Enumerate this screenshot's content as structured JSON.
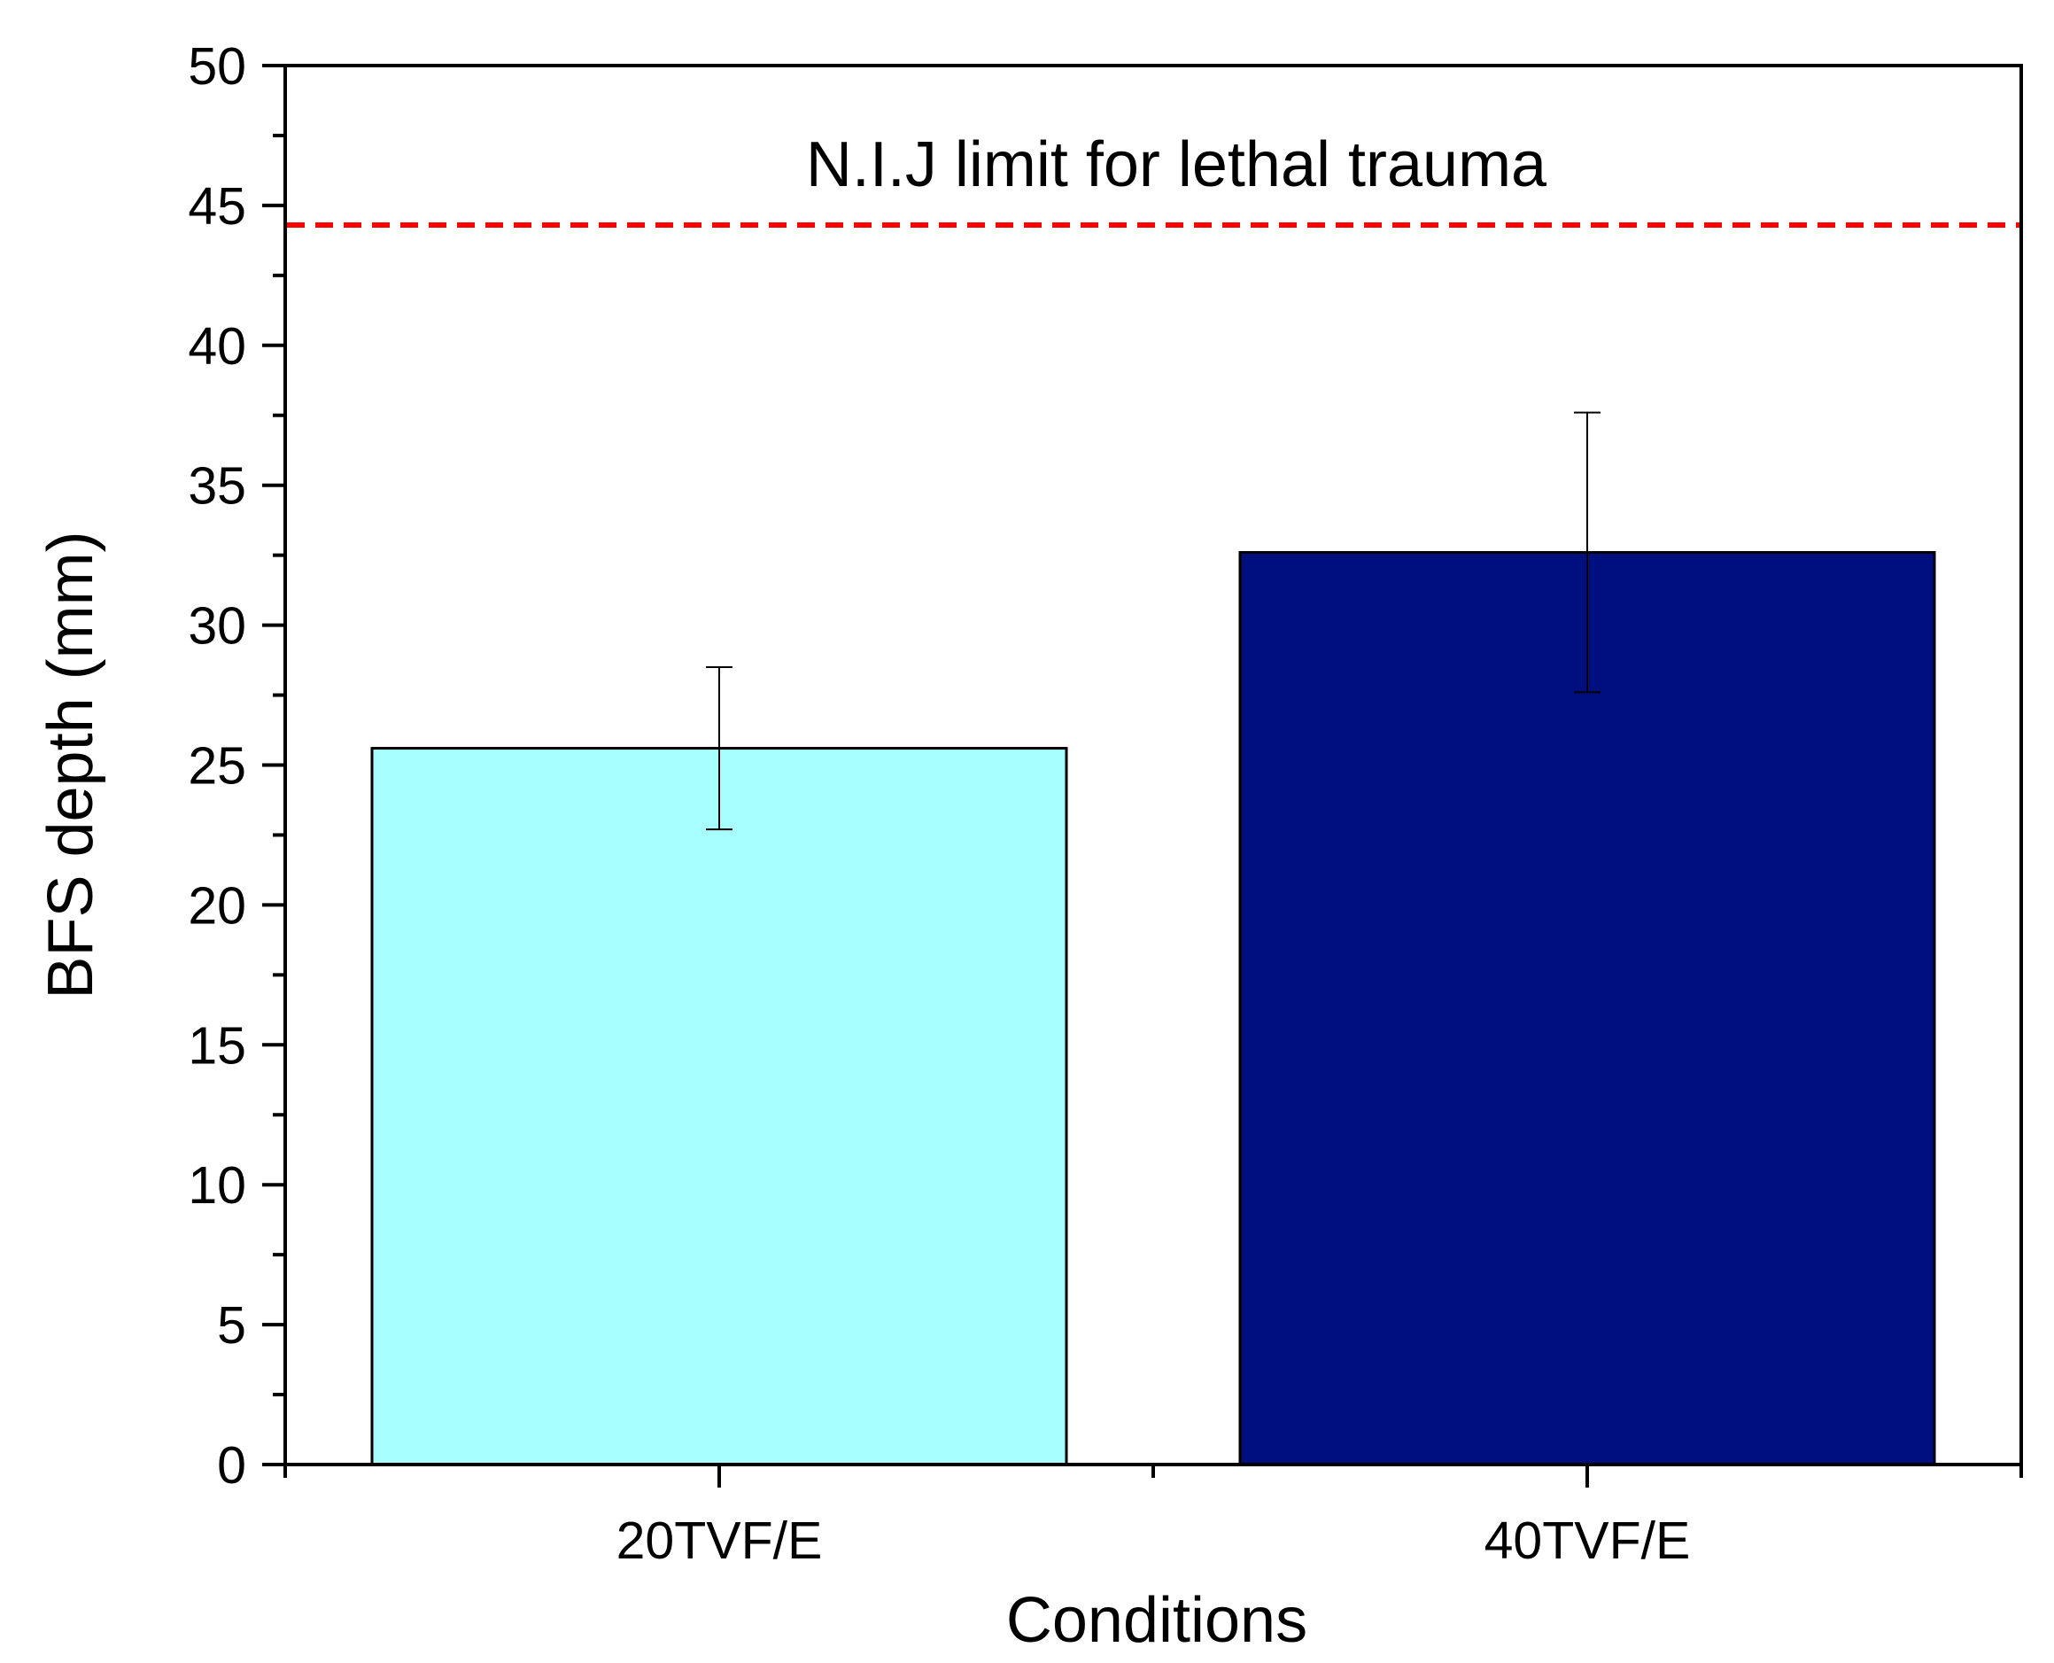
{
  "chart_data": {
    "type": "bar",
    "title": "",
    "xlabel": "Conditions",
    "ylabel": "BFS depth (mm)",
    "categories": [
      "20TVF/E",
      "40TVF/E"
    ],
    "values": [
      25.6,
      32.6
    ],
    "error": [
      2.9,
      5.0
    ],
    "bar_colors": [
      "#a8ffff",
      "#000f7e"
    ],
    "ylim": [
      0,
      50
    ],
    "y_ticks": [
      0,
      5,
      10,
      15,
      20,
      25,
      30,
      35,
      40,
      45,
      50
    ],
    "y_tick_labels": [
      "0",
      "5",
      "10",
      "15",
      "20",
      "25",
      "30",
      "35",
      "40",
      "45",
      "50"
    ],
    "reference_line": {
      "value": 44.3,
      "color": "#ff0000",
      "style": "dashed",
      "label": "N.I.J limit for lethal trauma"
    },
    "grid": false,
    "legend": "none"
  }
}
